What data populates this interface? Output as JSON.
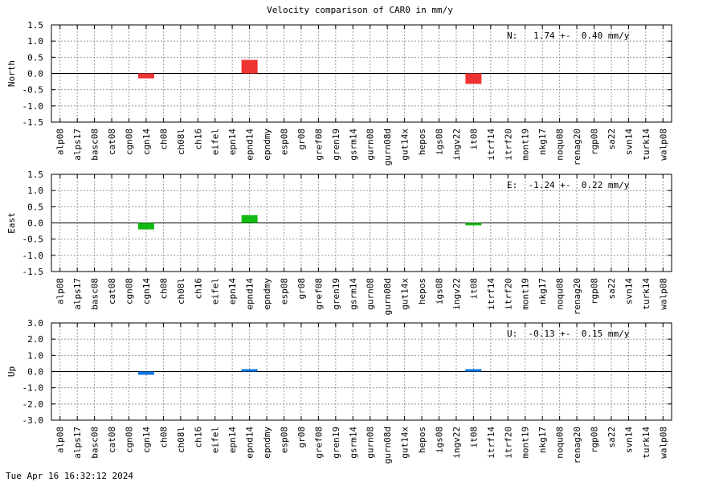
{
  "title": "Velocity comparison of CAR0 in mm/y",
  "footer_date": "Tue Apr 16 16:32:12 2024",
  "chart_data": {
    "type": "bar",
    "title": "Velocity comparison of CAR0 in mm/y",
    "categories": [
      "alp08",
      "alps17",
      "basc08",
      "cat08",
      "cgn08",
      "cgn14",
      "ch08",
      "ch08l",
      "ch16",
      "eifel",
      "epn14",
      "epnd14",
      "epndmy",
      "esp08",
      "gr08",
      "gref08",
      "gren19",
      "gsrm14",
      "gurn08",
      "gurn08d",
      "gut14x",
      "hepos",
      "igs08",
      "ingv22",
      "it08",
      "itrf14",
      "itrf20",
      "mont19",
      "nkg17",
      "noqu08",
      "renag20",
      "rgp08",
      "sa22",
      "svn14",
      "turk14",
      "walp08"
    ],
    "panels": [
      {
        "ylabel": "North",
        "ylim": [
          -1.5,
          1.5
        ],
        "yticks": [
          "1.5",
          "1.0",
          "0.5",
          "0.0",
          "-0.5",
          "-1.0",
          "-1.5"
        ],
        "color": "#ee3333",
        "summary": "N:   1.74 +-  0.40 mm/y",
        "bars": [
          {
            "category": "cgn14",
            "value": -0.15
          },
          {
            "category": "epnd14",
            "value": 0.42
          },
          {
            "category": "it08",
            "value": -0.32
          }
        ]
      },
      {
        "ylabel": "East",
        "ylim": [
          -1.5,
          1.5
        ],
        "yticks": [
          "1.5",
          "1.0",
          "0.5",
          "0.0",
          "-0.5",
          "-1.0",
          "-1.5"
        ],
        "color": "#11bb11",
        "summary": "E:  -1.24 +-  0.22 mm/y",
        "bars": [
          {
            "category": "cgn14",
            "value": -0.2
          },
          {
            "category": "epnd14",
            "value": 0.24
          },
          {
            "category": "it08",
            "value": -0.07
          }
        ]
      },
      {
        "ylabel": "Up",
        "ylim": [
          -3.0,
          3.0
        ],
        "yticks": [
          "3.0",
          "2.0",
          "1.0",
          "0.0",
          "-1.0",
          "-2.0",
          "-3.0"
        ],
        "color": "#1177dd",
        "summary": "U:  -0.13 +-  0.15 mm/y",
        "bars": [
          {
            "category": "cgn14",
            "value": -0.2
          },
          {
            "category": "epnd14",
            "value": 0.08
          },
          {
            "category": "it08",
            "value": 0.07
          }
        ]
      }
    ],
    "grid": true
  }
}
